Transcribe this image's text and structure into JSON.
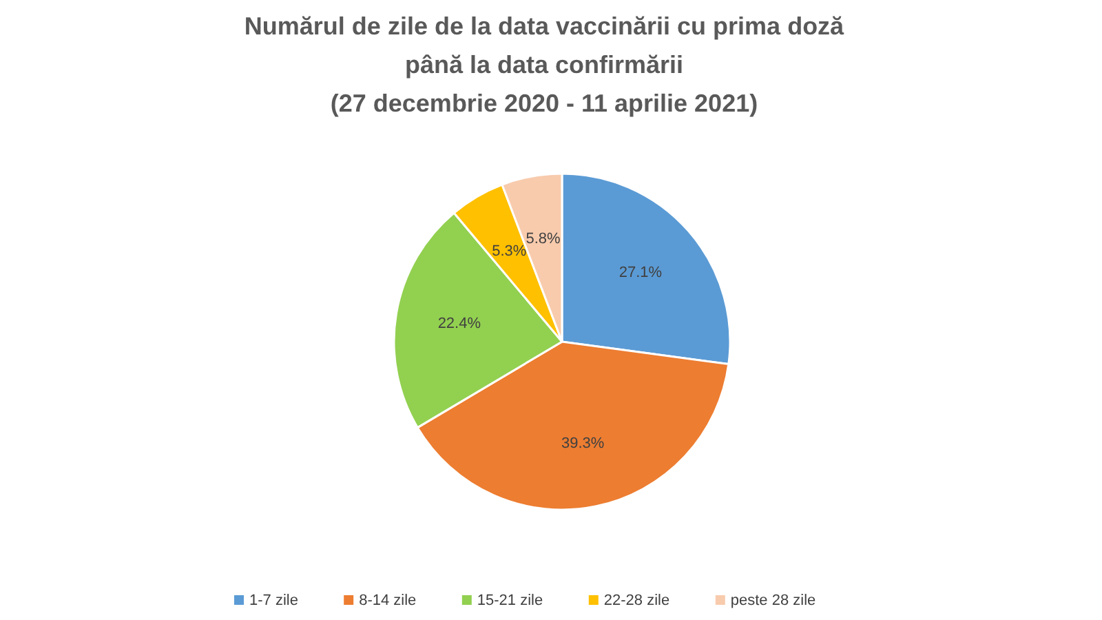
{
  "chart_data": {
    "type": "pie",
    "title": "Numărul de zile de la data vaccinării cu prima doză\npână la data confirmării\n(27 decembrie 2020 - 11 aprilie 2021)",
    "categories": [
      "1-7 zile",
      "8-14 zile",
      "15-21 zile",
      "22-28 zile",
      "peste 28 zile"
    ],
    "values": [
      27.1,
      39.3,
      22.4,
      5.3,
      5.8
    ],
    "colors": [
      "#5b9bd5",
      "#ed7d31",
      "#92d050",
      "#ffc000",
      "#f8cbad"
    ],
    "value_labels": [
      "27.1%",
      "39.3%",
      "22.4%",
      "5.3%",
      "5.8%"
    ],
    "legend": "bottom"
  }
}
